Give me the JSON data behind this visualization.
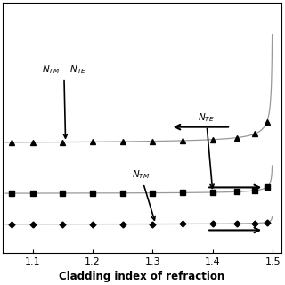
{
  "xlabel": "Cladding index of refraction",
  "xlim": [
    1.05,
    1.515
  ],
  "background_color": "#ffffff",
  "curve_color": "#999999",
  "marker_color": "#000000",
  "xticks": [
    1.1,
    1.2,
    1.3,
    1.4,
    1.5
  ],
  "xtick_labels": [
    "1.1",
    "1.2",
    "1.3",
    "1.4",
    "1.5"
  ],
  "curves": [
    {
      "marker": "D",
      "a": 0.0008,
      "b": 0.55,
      "c": 0.08,
      "name": "N_TM"
    },
    {
      "marker": "s",
      "a": 0.0018,
      "b": 0.62,
      "c": 0.22,
      "name": "N_TE"
    },
    {
      "marker": "^",
      "a": 0.004,
      "b": 0.7,
      "c": 0.45,
      "name": "N_TM-N_TE"
    }
  ],
  "ylim": [
    -0.05,
    1.1
  ],
  "n_core": 1.5
}
